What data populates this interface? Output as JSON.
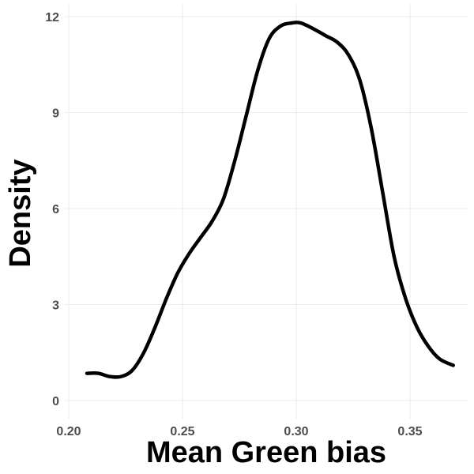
{
  "chart_data": {
    "type": "line",
    "title": "",
    "xlabel": "Mean Green bias",
    "ylabel": "Density",
    "xlim": [
      0.2,
      0.37
    ],
    "ylim": [
      0,
      12
    ],
    "x_ticks": [
      0.2,
      0.25,
      0.3,
      0.35
    ],
    "x_tick_labels": [
      "0.20",
      "0.25",
      "0.30",
      "0.35"
    ],
    "y_ticks": [
      0,
      3,
      6,
      9,
      12
    ],
    "y_tick_labels": [
      "0",
      "3",
      "6",
      "9",
      "12"
    ],
    "grid": true,
    "series": [
      {
        "color": "#000000",
        "x": [
          0.208,
          0.213,
          0.218,
          0.223,
          0.228,
          0.233,
          0.238,
          0.243,
          0.248,
          0.253,
          0.258,
          0.263,
          0.268,
          0.273,
          0.278,
          0.283,
          0.288,
          0.293,
          0.298,
          0.302,
          0.308,
          0.313,
          0.318,
          0.323,
          0.328,
          0.333,
          0.338,
          0.343,
          0.348,
          0.353,
          0.358,
          0.363,
          0.369
        ],
        "y": [
          0.85,
          0.85,
          0.75,
          0.75,
          0.95,
          1.5,
          2.3,
          3.2,
          4.0,
          4.6,
          5.1,
          5.6,
          6.3,
          7.5,
          8.9,
          10.3,
          11.3,
          11.7,
          11.8,
          11.8,
          11.6,
          11.4,
          11.2,
          10.8,
          10.0,
          8.5,
          6.5,
          4.5,
          3.2,
          2.3,
          1.7,
          1.3,
          1.1
        ]
      }
    ]
  }
}
